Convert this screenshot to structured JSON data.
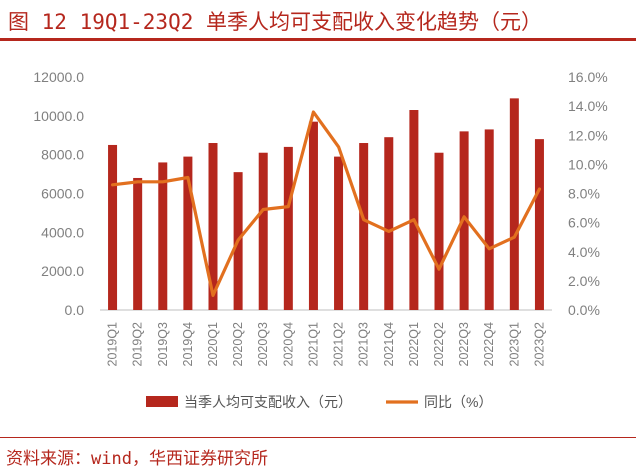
{
  "header": {
    "title": "图 12  19Q1-23Q2 单季人均可支配收入变化趋势（元）"
  },
  "footer": {
    "source": "资料来源：wind，华西证券研究所"
  },
  "colors": {
    "bar": "#b5271d",
    "line": "#e2701f",
    "accent": "#b5271d",
    "axis_text": "#808080"
  },
  "chart_data": {
    "type": "bar",
    "categories": [
      "2019Q1",
      "2019Q2",
      "2019Q3",
      "2019Q4",
      "2020Q1",
      "2020Q2",
      "2020Q3",
      "2020Q4",
      "2021Q1",
      "2021Q2",
      "2021Q3",
      "2021Q4",
      "2022Q1",
      "2022Q2",
      "2022Q3",
      "2022Q4",
      "2023Q1",
      "2023Q2"
    ],
    "series": [
      {
        "name": "当季人均可支配收入（元）",
        "type": "bar",
        "axis": "left",
        "values": [
          8500,
          6800,
          7600,
          7900,
          8600,
          7100,
          8100,
          8400,
          9700,
          7900,
          8600,
          8900,
          10300,
          8100,
          9200,
          9300,
          10900,
          8800
        ]
      },
      {
        "name": "同比（%）",
        "type": "line",
        "axis": "right",
        "values": [
          8.6,
          8.8,
          8.8,
          9.1,
          1.0,
          4.8,
          6.9,
          7.1,
          13.6,
          11.2,
          6.2,
          5.4,
          6.2,
          2.8,
          6.4,
          4.2,
          5.0,
          8.3
        ]
      }
    ],
    "y_left": {
      "min": 0,
      "max": 12000,
      "ticks": [
        "0.0",
        "2000.0",
        "4000.0",
        "6000.0",
        "8000.0",
        "10000.0",
        "12000.0"
      ]
    },
    "y_right": {
      "min": 0,
      "max": 16,
      "ticks": [
        "0.0%",
        "2.0%",
        "4.0%",
        "6.0%",
        "8.0%",
        "10.0%",
        "12.0%",
        "14.0%",
        "16.0%"
      ]
    },
    "legend": {
      "position": "bottom",
      "entries": [
        "当季人均可支配收入（元）",
        "同比（%）"
      ]
    },
    "grid": false
  }
}
